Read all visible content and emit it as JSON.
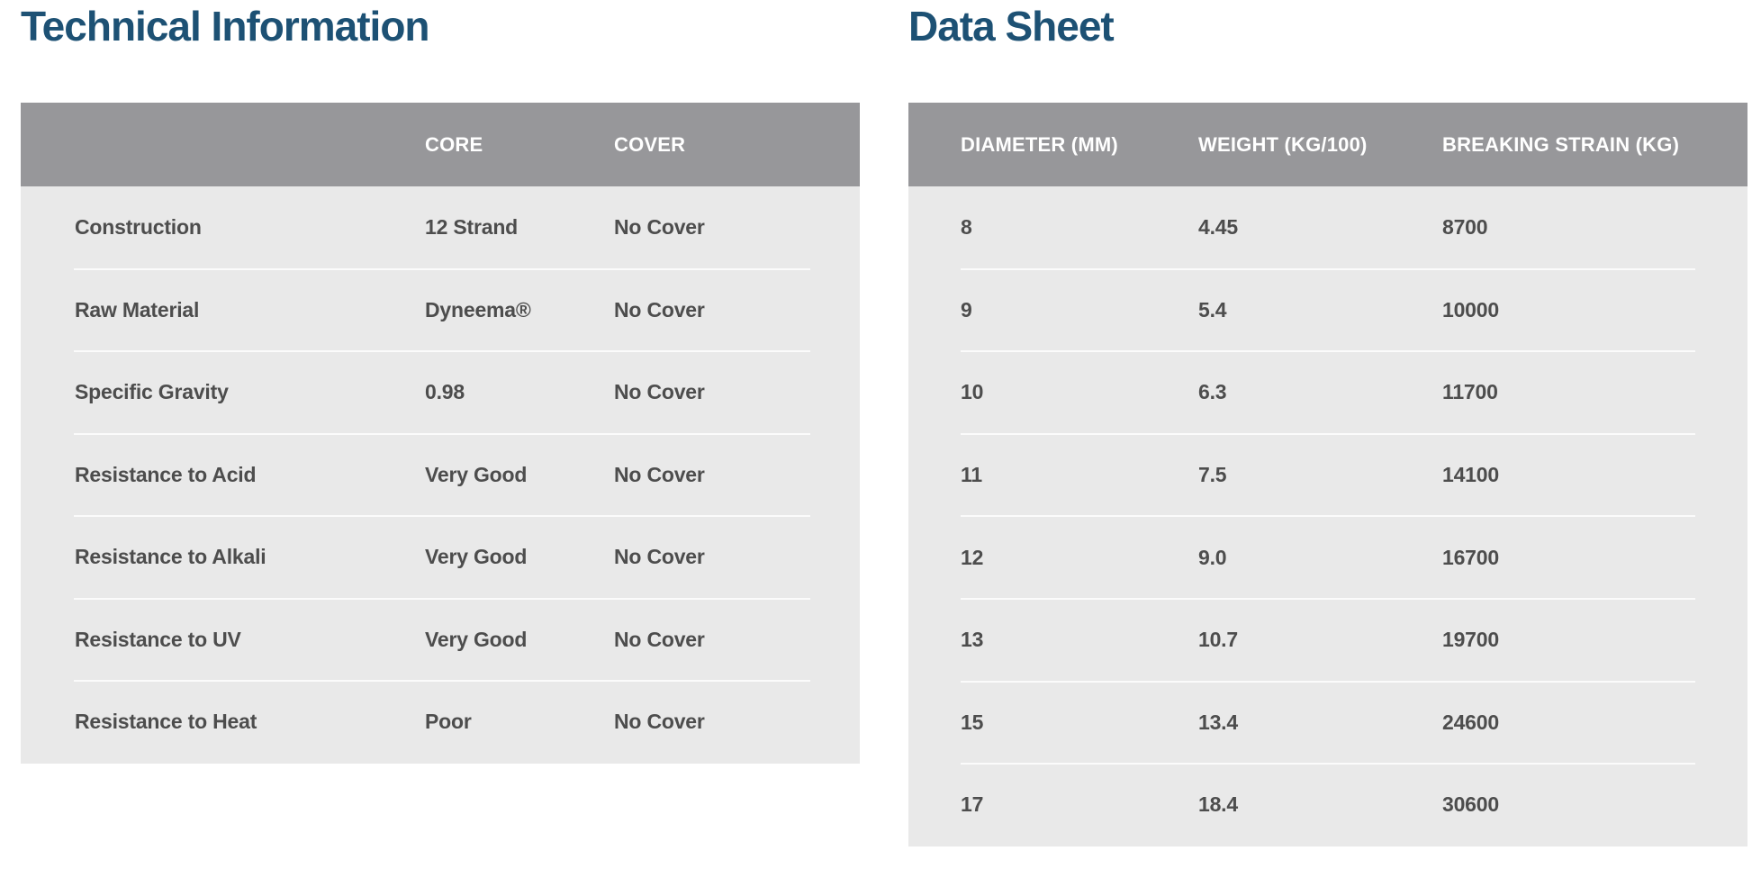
{
  "page": {
    "background": "#ffffff"
  },
  "colors": {
    "title_blue": "#1d5174",
    "header_bg": "#97979a",
    "header_text": "#ffffff",
    "body_bg": "#e9e9e9",
    "row_text": "#4d4d4d",
    "divider": "#fbfbfb"
  },
  "technical_information": {
    "title": "Technical Information",
    "columns": [
      "",
      "CORE",
      "COVER"
    ],
    "rows": [
      {
        "label": "Construction",
        "core": "12 Strand",
        "cover": "No Cover"
      },
      {
        "label": "Raw Material",
        "core": "Dyneema®",
        "cover": "No Cover"
      },
      {
        "label": "Specific Gravity",
        "core": "0.98",
        "cover": "No Cover"
      },
      {
        "label": "Resistance to Acid",
        "core": "Very Good",
        "cover": "No Cover"
      },
      {
        "label": "Resistance to Alkali",
        "core": "Very Good",
        "cover": "No Cover"
      },
      {
        "label": "Resistance to UV",
        "core": "Very Good",
        "cover": "No Cover"
      },
      {
        "label": "Resistance to Heat",
        "core": "Poor",
        "cover": "No Cover"
      }
    ]
  },
  "data_sheet": {
    "title": "Data Sheet",
    "columns": [
      "DIAMETER (MM)",
      "WEIGHT (KG/100)",
      "BREAKING STRAIN (KG)"
    ],
    "rows": [
      {
        "diameter": "8",
        "weight": "4.45",
        "breaking_strain": "8700"
      },
      {
        "diameter": "9",
        "weight": "5.4",
        "breaking_strain": "10000"
      },
      {
        "diameter": "10",
        "weight": "6.3",
        "breaking_strain": "11700"
      },
      {
        "diameter": "11",
        "weight": "7.5",
        "breaking_strain": "14100"
      },
      {
        "diameter": "12",
        "weight": "9.0",
        "breaking_strain": "16700"
      },
      {
        "diameter": "13",
        "weight": "10.7",
        "breaking_strain": "19700"
      },
      {
        "diameter": "15",
        "weight": "13.4",
        "breaking_strain": "24600"
      },
      {
        "diameter": "17",
        "weight": "18.4",
        "breaking_strain": "30600"
      }
    ]
  },
  "chart_data": [
    {
      "type": "table",
      "title": "Technical Information",
      "columns": [
        "",
        "CORE",
        "COVER"
      ],
      "rows": [
        [
          "Construction",
          "12 Strand",
          "No Cover"
        ],
        [
          "Raw Material",
          "Dyneema®",
          "No Cover"
        ],
        [
          "Specific Gravity",
          "0.98",
          "No Cover"
        ],
        [
          "Resistance to Acid",
          "Very Good",
          "No Cover"
        ],
        [
          "Resistance to Alkali",
          "Very Good",
          "No Cover"
        ],
        [
          "Resistance to UV",
          "Very Good",
          "No Cover"
        ],
        [
          "Resistance to Heat",
          "Poor",
          "No Cover"
        ]
      ]
    },
    {
      "type": "table",
      "title": "Data Sheet",
      "columns": [
        "DIAMETER (MM)",
        "WEIGHT (KG/100)",
        "BREAKING STRAIN (KG)"
      ],
      "rows": [
        [
          8,
          4.45,
          8700
        ],
        [
          9,
          5.4,
          10000
        ],
        [
          10,
          6.3,
          11700
        ],
        [
          11,
          7.5,
          14100
        ],
        [
          12,
          9.0,
          16700
        ],
        [
          13,
          10.7,
          19700
        ],
        [
          15,
          13.4,
          24600
        ],
        [
          17,
          18.4,
          30600
        ]
      ]
    }
  ]
}
